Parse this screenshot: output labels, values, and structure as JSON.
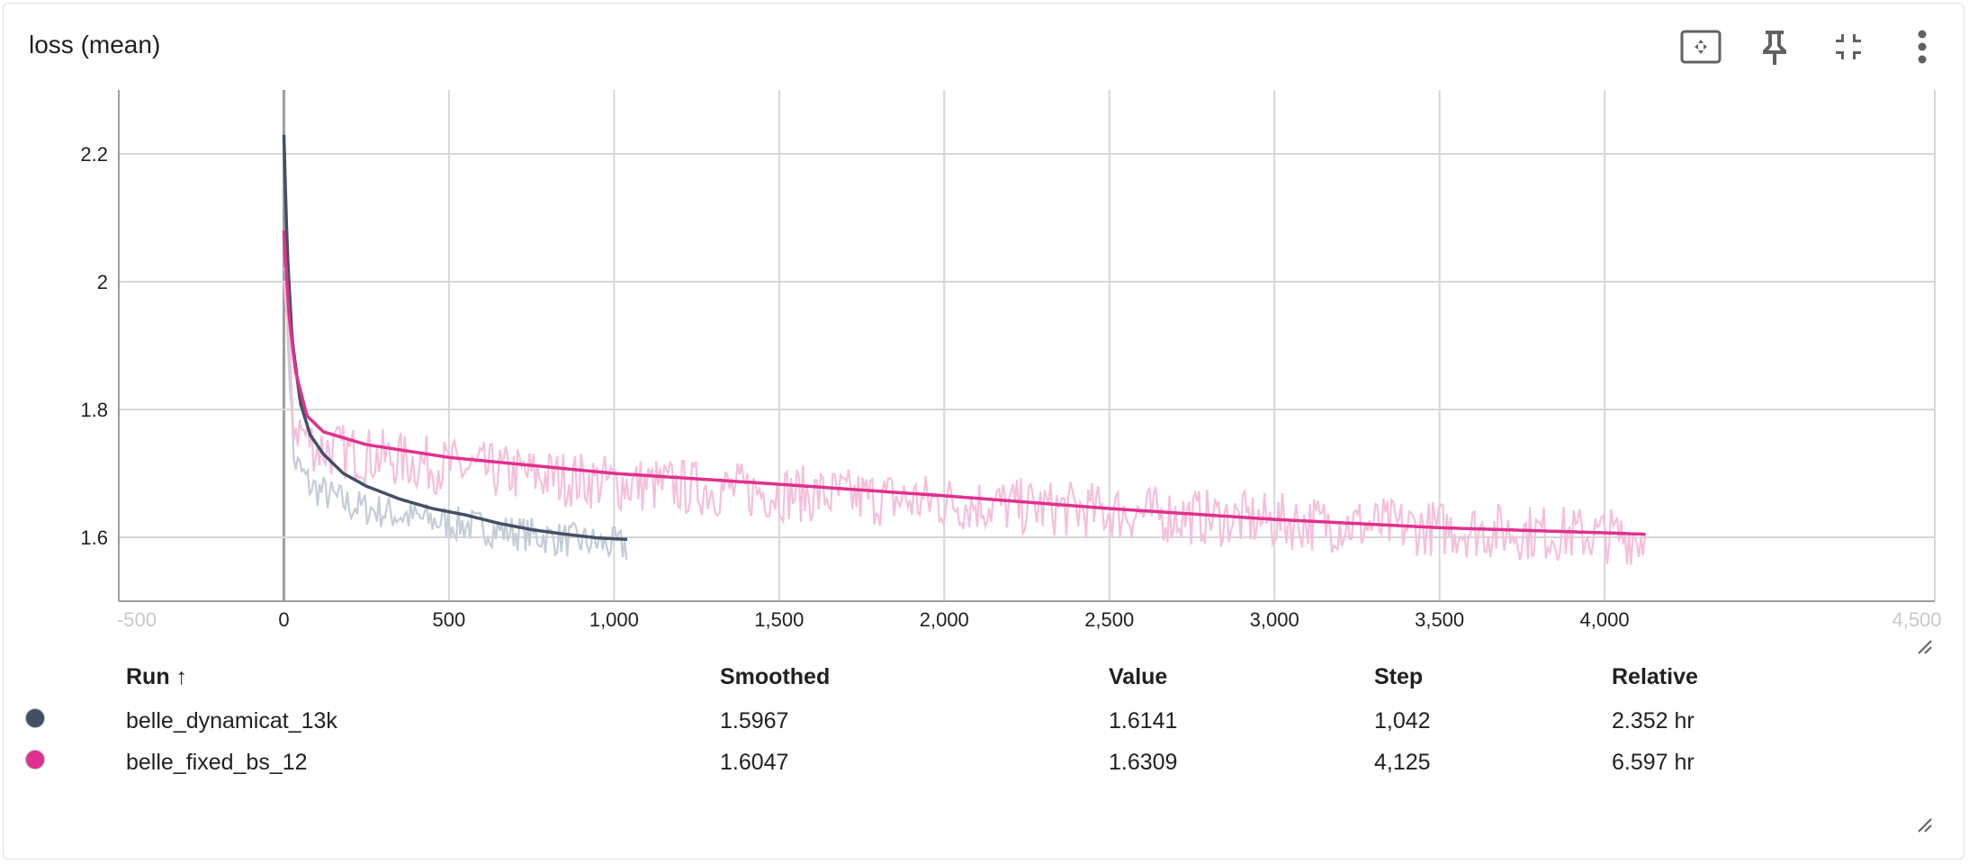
{
  "card": {
    "title": "loss (mean)"
  },
  "toolbar": {
    "buttons": [
      {
        "name": "fit-domain-button",
        "icon": "fit-to-domain-icon"
      },
      {
        "name": "pin-button",
        "icon": "pin-icon"
      },
      {
        "name": "collapse-button",
        "icon": "collapse-icon"
      },
      {
        "name": "more-button",
        "icon": "more-vert-icon"
      }
    ]
  },
  "chart_data": {
    "type": "line",
    "title": "loss (mean)",
    "xlabel": "",
    "ylabel": "",
    "xlim": [
      -500,
      5000
    ],
    "ylim": [
      1.5,
      2.3
    ],
    "x_ticks": [
      0,
      500,
      1000,
      1500,
      2000,
      2500,
      3000,
      3500,
      4000
    ],
    "x_tick_labels": [
      "0",
      "500",
      "1,000",
      "1,500",
      "2,000",
      "2,500",
      "3,000",
      "3,500",
      "4,000"
    ],
    "x_edge_labels": [
      "-500",
      "4,500"
    ],
    "y_ticks": [
      1.6,
      1.8,
      2.0,
      2.2
    ],
    "y_tick_labels": [
      "1.6",
      "1.8",
      "2",
      "2.2"
    ],
    "grid": true,
    "series": [
      {
        "name": "belle_dynamicat_13k",
        "color": "#425066",
        "raw_color": "#c3ccd7",
        "smoothed": [
          [
            0,
            2.23
          ],
          [
            10,
            2.05
          ],
          [
            25,
            1.91
          ],
          [
            50,
            1.81
          ],
          [
            80,
            1.76
          ],
          [
            120,
            1.73
          ],
          [
            180,
            1.7
          ],
          [
            250,
            1.68
          ],
          [
            350,
            1.66
          ],
          [
            450,
            1.645
          ],
          [
            550,
            1.635
          ],
          [
            650,
            1.622
          ],
          [
            750,
            1.612
          ],
          [
            850,
            1.605
          ],
          [
            950,
            1.599
          ],
          [
            1042,
            1.5967
          ]
        ],
        "raw_base": [
          [
            0,
            2.05
          ],
          [
            30,
            1.72
          ],
          [
            80,
            1.68
          ],
          [
            200,
            1.65
          ],
          [
            400,
            1.63
          ],
          [
            600,
            1.615
          ],
          [
            800,
            1.6
          ],
          [
            1042,
            1.585
          ]
        ],
        "raw_noise": 0.028,
        "last_step": 1042
      },
      {
        "name": "belle_fixed_bs_12",
        "color": "#e0308d",
        "raw_color": "#f5bfdc",
        "smoothed": [
          [
            0,
            2.08
          ],
          [
            15,
            1.95
          ],
          [
            35,
            1.86
          ],
          [
            70,
            1.79
          ],
          [
            120,
            1.765
          ],
          [
            250,
            1.745
          ],
          [
            500,
            1.725
          ],
          [
            1000,
            1.7
          ],
          [
            1500,
            1.683
          ],
          [
            2000,
            1.665
          ],
          [
            2500,
            1.645
          ],
          [
            3000,
            1.628
          ],
          [
            3500,
            1.615
          ],
          [
            4000,
            1.607
          ],
          [
            4125,
            1.6047
          ]
        ],
        "raw_base": [
          [
            0,
            2.0
          ],
          [
            30,
            1.78
          ],
          [
            100,
            1.74
          ],
          [
            500,
            1.71
          ],
          [
            1000,
            1.685
          ],
          [
            2000,
            1.655
          ],
          [
            3000,
            1.625
          ],
          [
            4125,
            1.6
          ]
        ],
        "raw_noise": 0.045,
        "last_step": 4125
      }
    ]
  },
  "table": {
    "headers": {
      "run": "Run ↑",
      "smoothed": "Smoothed",
      "value": "Value",
      "step": "Step",
      "relative": "Relative"
    },
    "rows": [
      {
        "color": "#425066",
        "run": "belle_dynamicat_13k",
        "smoothed": "1.5967",
        "value": "1.6141",
        "step": "1,042",
        "relative": "2.352 hr"
      },
      {
        "color": "#e0308d",
        "run": "belle_fixed_bs_12",
        "smoothed": "1.6047",
        "value": "1.6309",
        "step": "4,125",
        "relative": "6.597 hr"
      }
    ]
  }
}
